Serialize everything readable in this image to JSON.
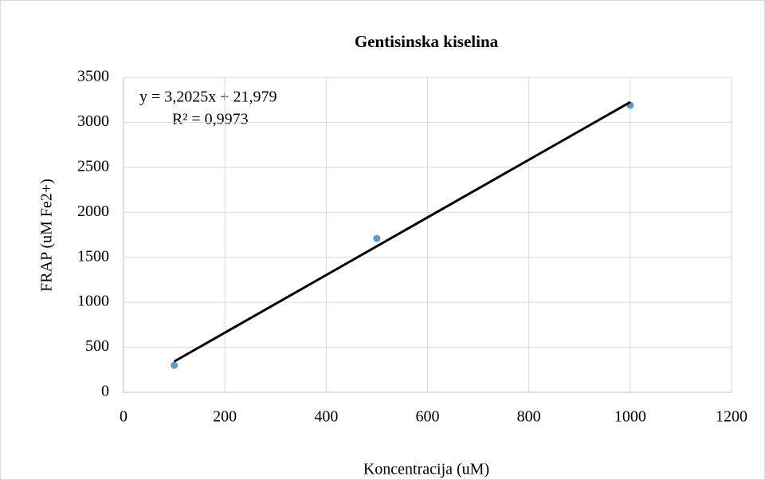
{
  "chart_data": {
    "type": "scatter",
    "title": "Gentisinska kiselina",
    "x_label": "Koncentracija (uM)",
    "y_label": "FRAP (uM Fe2+)",
    "series": [
      {
        "color": "#5b9bd5",
        "x": [
          100,
          500,
          1000
        ],
        "values": [
          300,
          1710,
          3190
        ]
      }
    ],
    "trendline": {
      "color": "#000000",
      "x": [
        100,
        1000
      ],
      "values": [
        342.229,
        3224.479
      ]
    },
    "annotations": [
      "y = 3,2025x + 21,979",
      "R² = 0,9973"
    ],
    "xlim": [
      0,
      1200
    ],
    "xticks": [
      0,
      200,
      400,
      600,
      800,
      1000,
      1200
    ],
    "ylim": [
      0,
      3500
    ],
    "yticks": [
      0,
      500,
      1000,
      1500,
      2000,
      2500,
      3000,
      3500
    ],
    "grid": true
  }
}
